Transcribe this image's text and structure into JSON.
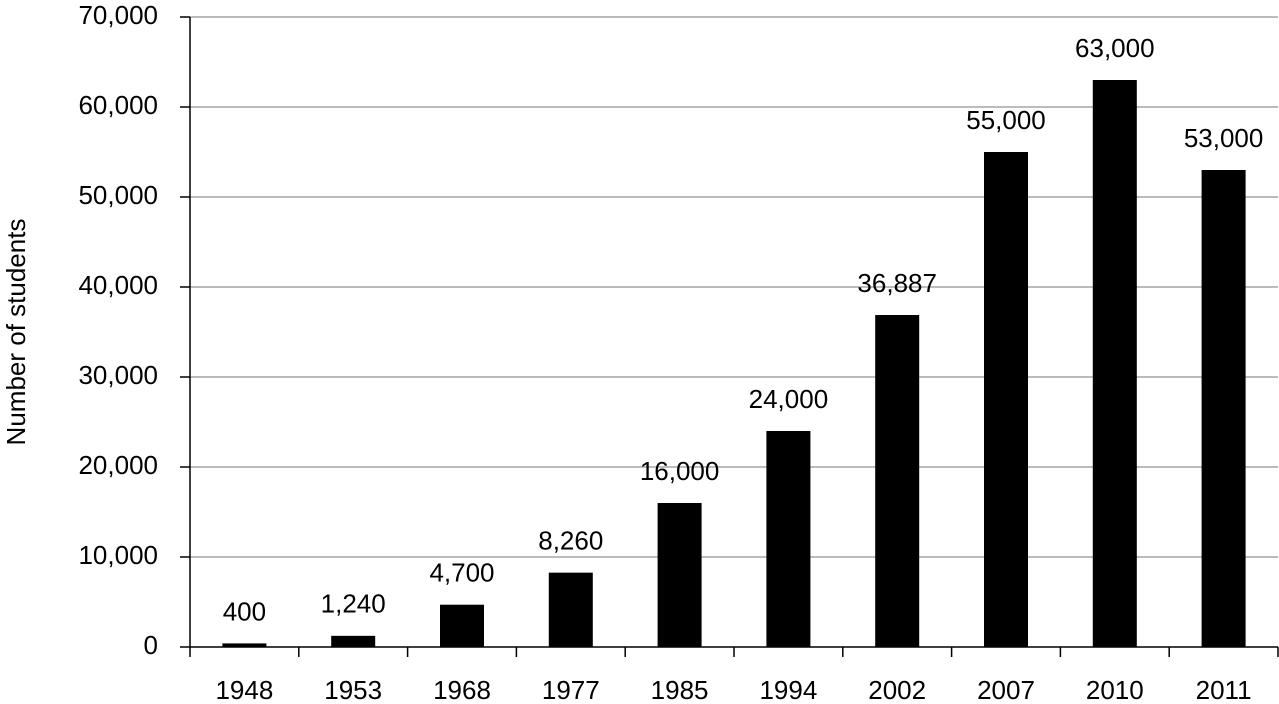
{
  "chart_data": {
    "type": "bar",
    "y_axis_title": "Number of students",
    "categories": [
      "1948",
      "1953",
      "1968",
      "1977",
      "1985",
      "1994",
      "2002",
      "2007",
      "2010",
      "2011"
    ],
    "values": [
      400,
      1240,
      4700,
      8260,
      16000,
      24000,
      36887,
      55000,
      63000,
      53000
    ],
    "value_labels": [
      "400",
      "1,240",
      "4,700",
      "8,260",
      "16,000",
      "24,000",
      "36,887",
      "55,000",
      "63,000",
      "53,000"
    ],
    "color": "#000000",
    "ylim": [
      0,
      70000
    ],
    "yticks": [
      0,
      {
        "value": 10000,
        "label": "10,000"
      },
      {
        "value": 20000,
        "label": "20,000"
      },
      {
        "value": 30000,
        "label": "30,000"
      },
      {
        "value": 40000,
        "label": "40,000"
      },
      {
        "value": 50000,
        "label": "50,000"
      },
      {
        "value": 60000,
        "label": "60,000"
      },
      {
        "value": 70000,
        "label": "70,000"
      }
    ],
    "grid": true
  }
}
